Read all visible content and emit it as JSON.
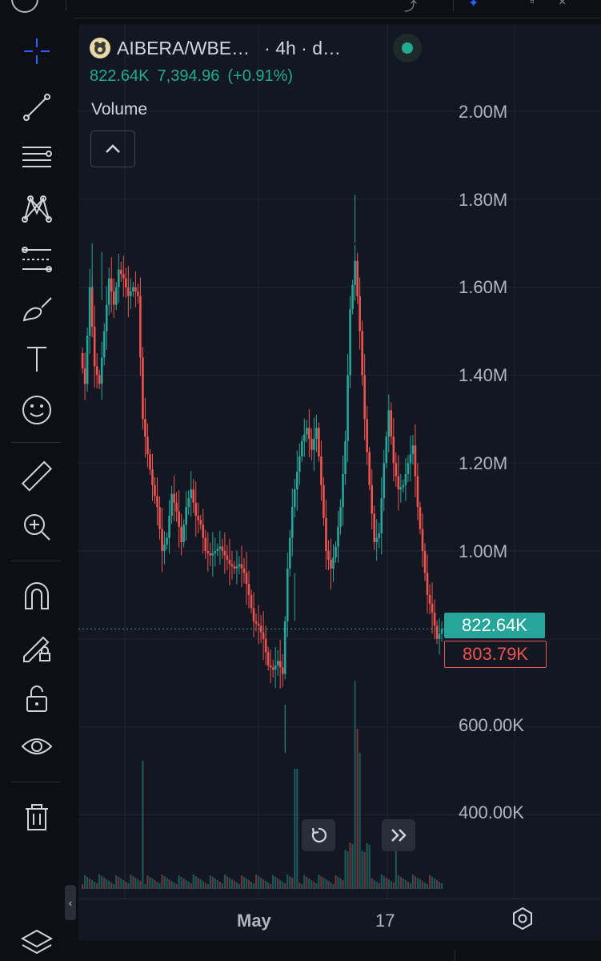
{
  "header": {
    "symbol": "AIBERA/WBE…",
    "interval_label": "· 4h · d…",
    "last_price": "822.64K",
    "change_abs": "7,394.96",
    "change_pct": "(+0.91%)",
    "status_color": "#22ab94"
  },
  "volume_panel": {
    "label": "Volume"
  },
  "tags": {
    "last_price": "822.64K",
    "prev_close": "803.79K"
  },
  "toolbar": {
    "icons": [
      "crosshair-icon",
      "trend-line-icon",
      "fib-retracement-icon",
      "pattern-icon",
      "forecasting-icon",
      "brush-icon",
      "text-icon",
      "emoji-icon",
      "ruler-icon",
      "zoom-in-icon",
      "magnet-icon",
      "lock-drawing-icon",
      "unlock-icon",
      "eye-icon",
      "trash-icon",
      "layers-icon"
    ]
  },
  "chart_data": {
    "type": "candlestick",
    "title": "",
    "xlabel": "",
    "ylabel": "",
    "price_axis_labels": [
      "2.00M",
      "1.80M",
      "1.60M",
      "1.40M",
      "1.20M",
      "1.00M",
      "600.00K",
      "400.00K"
    ],
    "time_axis_labels": [
      "May",
      "17"
    ],
    "ylim": [
      200000,
      2100000
    ],
    "last_price": 822640,
    "prev_close": 803790,
    "colors": {
      "up": "#26a69a",
      "down": "#ef5350"
    },
    "close_path": [
      [
        0,
        1450000
      ],
      [
        2,
        1380000
      ],
      [
        4,
        1600000
      ],
      [
        6,
        1420000
      ],
      [
        8,
        1380000
      ],
      [
        10,
        1500000
      ],
      [
        12,
        1620000
      ],
      [
        14,
        1560000
      ],
      [
        16,
        1640000
      ],
      [
        18,
        1620000
      ],
      [
        20,
        1580000
      ],
      [
        22,
        1600000
      ],
      [
        24,
        1580000
      ],
      [
        26,
        1300000
      ],
      [
        28,
        1220000
      ],
      [
        30,
        1150000
      ],
      [
        32,
        1100000
      ],
      [
        34,
        1000000
      ],
      [
        36,
        1030000
      ],
      [
        38,
        1130000
      ],
      [
        40,
        1090000
      ],
      [
        42,
        1020000
      ],
      [
        44,
        1100000
      ],
      [
        46,
        1140000
      ],
      [
        48,
        1080000
      ],
      [
        50,
        1060000
      ],
      [
        52,
        1000000
      ],
      [
        54,
        990000
      ],
      [
        56,
        1000000
      ],
      [
        58,
        1010000
      ],
      [
        60,
        990000
      ],
      [
        62,
        970000
      ],
      [
        64,
        960000
      ],
      [
        66,
        970000
      ],
      [
        68,
        950000
      ],
      [
        70,
        900000
      ],
      [
        72,
        840000
      ],
      [
        74,
        830000
      ],
      [
        76,
        800000
      ],
      [
        78,
        740000
      ],
      [
        80,
        730000
      ],
      [
        82,
        750000
      ],
      [
        84,
        720000
      ],
      [
        86,
        960000
      ],
      [
        88,
        1100000
      ],
      [
        90,
        1180000
      ],
      [
        92,
        1250000
      ],
      [
        94,
        1280000
      ],
      [
        96,
        1230000
      ],
      [
        98,
        1280000
      ],
      [
        100,
        1150000
      ],
      [
        102,
        1000000
      ],
      [
        104,
        960000
      ],
      [
        106,
        1010000
      ],
      [
        108,
        1100000
      ],
      [
        110,
        1250000
      ],
      [
        112,
        1550000
      ],
      [
        114,
        1660000
      ],
      [
        116,
        1500000
      ],
      [
        118,
        1300000
      ],
      [
        120,
        1150000
      ],
      [
        122,
        1020000
      ],
      [
        124,
        1040000
      ],
      [
        126,
        1200000
      ],
      [
        128,
        1320000
      ],
      [
        130,
        1200000
      ],
      [
        132,
        1140000
      ],
      [
        134,
        1150000
      ],
      [
        136,
        1200000
      ],
      [
        138,
        1240000
      ],
      [
        140,
        1100000
      ],
      [
        142,
        1000000
      ],
      [
        144,
        900000
      ],
      [
        146,
        860000
      ],
      [
        148,
        800000
      ],
      [
        150,
        822640
      ]
    ]
  }
}
